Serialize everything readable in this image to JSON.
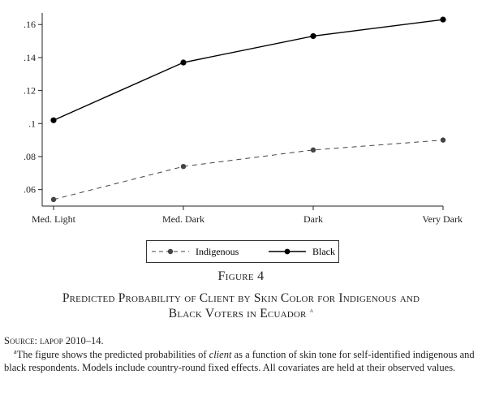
{
  "chart_data": {
    "type": "line",
    "categories": [
      "Med. Light",
      "Med. Dark",
      "Dark",
      "Very Dark"
    ],
    "series": [
      {
        "name": "Indigenous",
        "values": [
          0.054,
          0.074,
          0.084,
          0.09
        ],
        "style": "dashed",
        "color": "#444444"
      },
      {
        "name": "Black",
        "values": [
          0.102,
          0.137,
          0.153,
          0.163
        ],
        "style": "solid",
        "color": "#000000"
      }
    ],
    "ylim": [
      0.05,
      0.167
    ],
    "yticks": [
      0.06,
      0.08,
      0.1,
      0.12,
      0.14,
      0.16
    ],
    "ytick_labels": [
      ".06",
      ".08",
      ".1",
      ".12",
      ".14",
      ".16"
    ],
    "grid": false,
    "legend_position": "bottom"
  },
  "figure": {
    "number": "Figure 4",
    "title_line1": "Predicted Probability of Client by Skin Color for Indigenous and",
    "title_line2": "Black Voters in Ecuador",
    "title_mark": "a"
  },
  "source": {
    "label": "Source:",
    "org": "LAPOP",
    "years": "2010–14."
  },
  "note": {
    "mark": "a",
    "text_before": "The figure shows the predicted probabilities of ",
    "italic": "client",
    "text_after": " as a function of skin tone for self-identified indigenous and black respondents. Models include country-round fixed effects. All covariates are held at their observed values."
  }
}
